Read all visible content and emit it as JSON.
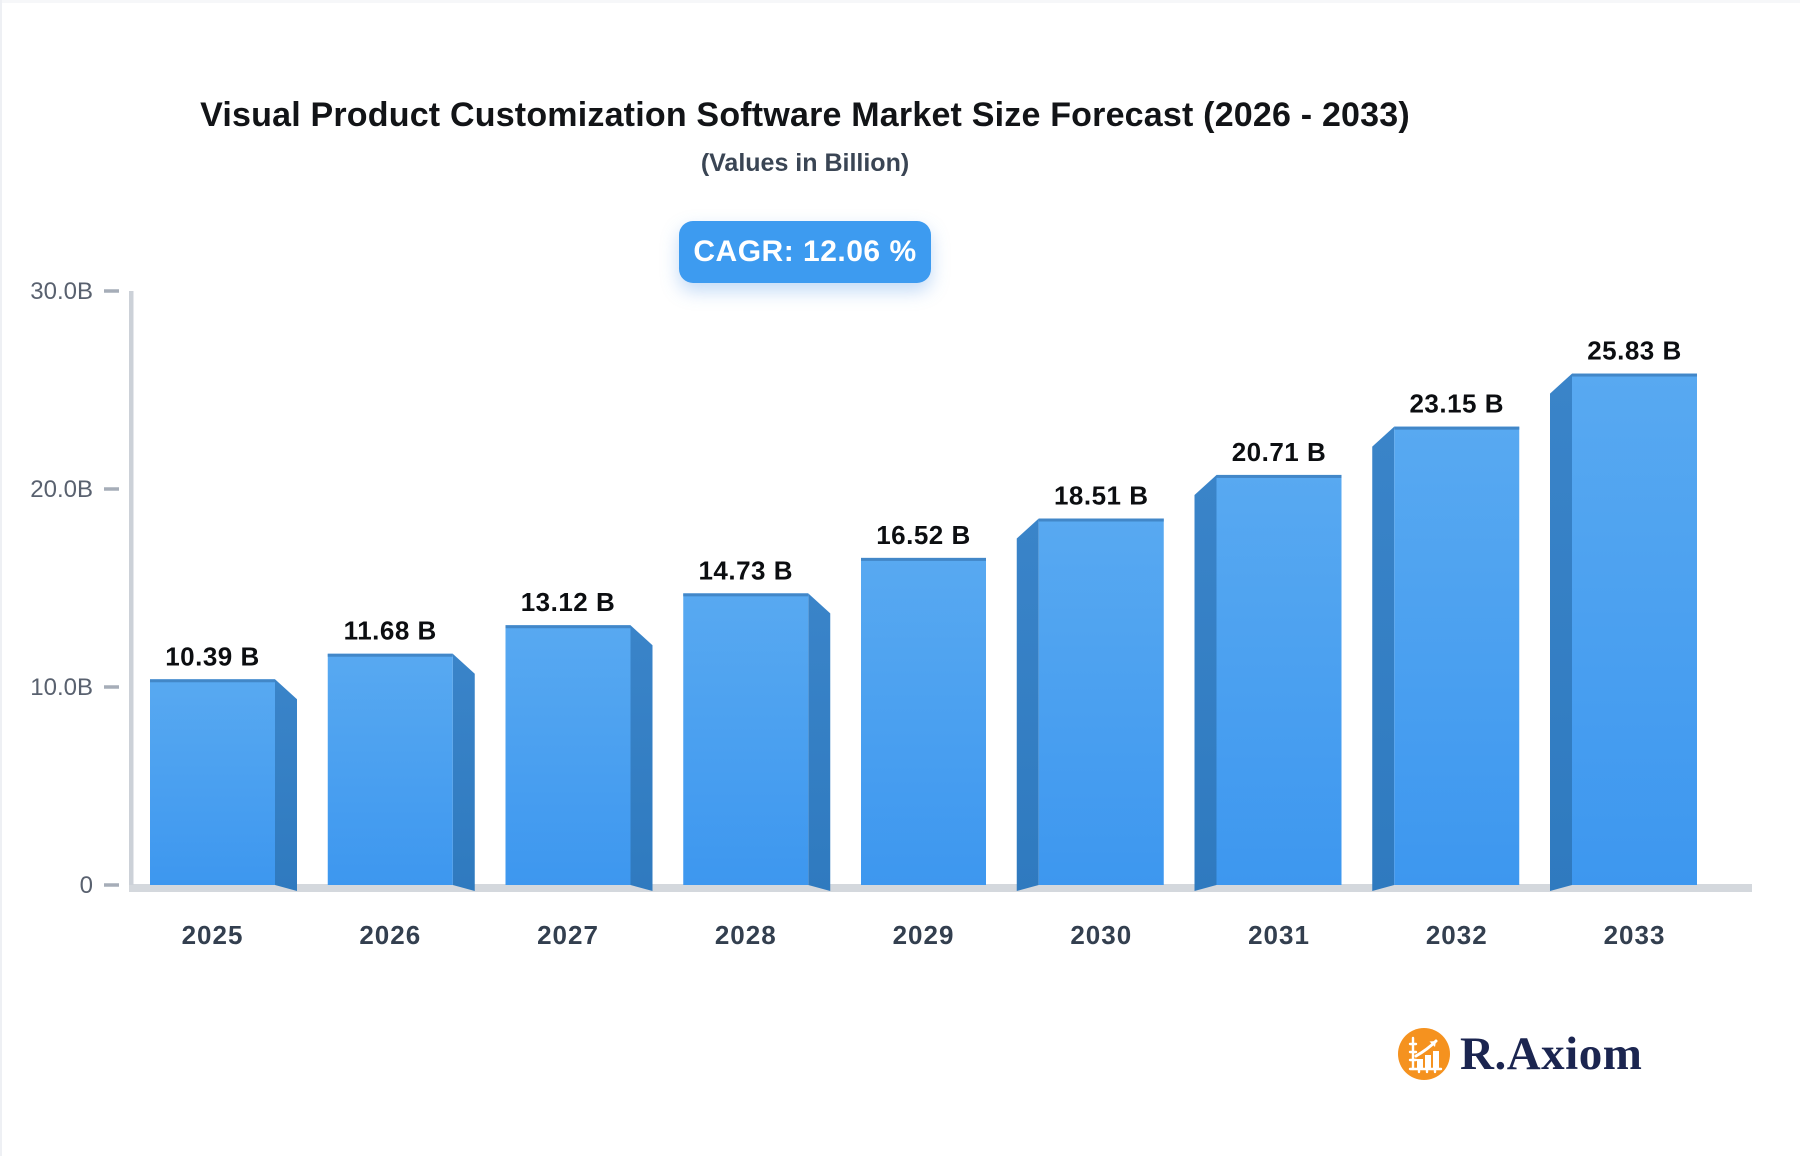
{
  "title": "Visual Product Customization Software Market Size Forecast (2026 - 2033)",
  "subtitle": "(Values in Billion)",
  "badge": {
    "label": "CAGR: 12.06 %",
    "color": "#3d9bf0"
  },
  "brand": {
    "name": "R.Axiom",
    "icon": "bar-chart-growth-icon",
    "icon_color": "#f5921f",
    "text_color": "#1b2550"
  },
  "chart_data": {
    "type": "bar",
    "title": "Visual Product Customization Software Market Size Forecast (2026 - 2033)",
    "subtitle": "(Values in Billion)",
    "categories": [
      "2025",
      "2026",
      "2027",
      "2028",
      "2029",
      "2030",
      "2031",
      "2032",
      "2033"
    ],
    "values": [
      10.39,
      11.68,
      13.12,
      14.73,
      16.52,
      18.51,
      20.71,
      23.15,
      25.83
    ],
    "value_labels": [
      "10.39 B",
      "11.68 B",
      "13.12 B",
      "14.73 B",
      "16.52 B",
      "18.51 B",
      "20.71 B",
      "23.15 B",
      "25.83 B"
    ],
    "xlabel": "",
    "ylabel": "",
    "ylim": [
      0,
      30
    ],
    "yticks": [
      {
        "value": 30,
        "label": "30.0B"
      },
      {
        "value": 20,
        "label": "20.0B"
      },
      {
        "value": 10,
        "label": "10.0B"
      },
      {
        "value": 0,
        "label": "0"
      }
    ],
    "grid": false,
    "legend": false,
    "style": "3d-columns-center-perspective",
    "colors": {
      "bar_top": "#58a9f1",
      "bar_bottom": "#3d97ef",
      "bar_top_edge": "#4287c8",
      "bar_side": "#2f7abf",
      "axis_line": "#ccd1d8",
      "baseline": "#d4d8dd",
      "tick_mark": "#a6adb8",
      "ytick_text": "#59616f",
      "xtick_text": "#333f4f",
      "value_text": "#0c0e11"
    }
  }
}
